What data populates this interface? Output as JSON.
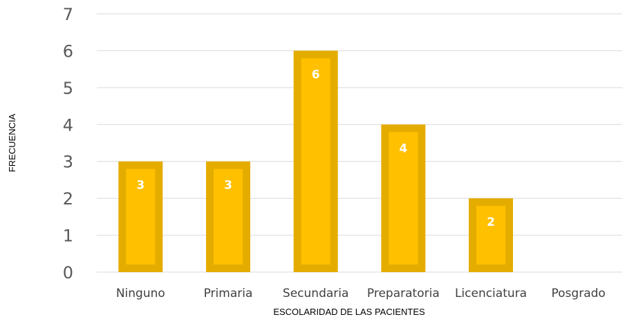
{
  "chart_data": {
    "type": "bar",
    "categories": [
      "Ninguno",
      "Primaria",
      "Secundaria",
      "Preparatoria",
      "Licenciatura",
      "Posgrado"
    ],
    "values": [
      3,
      3,
      6,
      4,
      2,
      0
    ],
    "data_labels": [
      "3",
      "3",
      "6",
      "4",
      "2",
      ""
    ],
    "title": "",
    "xlabel": "ESCOLARIDAD DE LAS PACIENTES",
    "ylabel": "FRECUENCIA",
    "ylim": [
      0,
      7
    ],
    "yticks": [
      0,
      1,
      2,
      3,
      4,
      5,
      6,
      7
    ],
    "grid": true,
    "legend": "none",
    "colors": {
      "bar_fill": "#FFC000",
      "bar_border": "#E5AC00",
      "grid": "#D9D9D9"
    }
  }
}
